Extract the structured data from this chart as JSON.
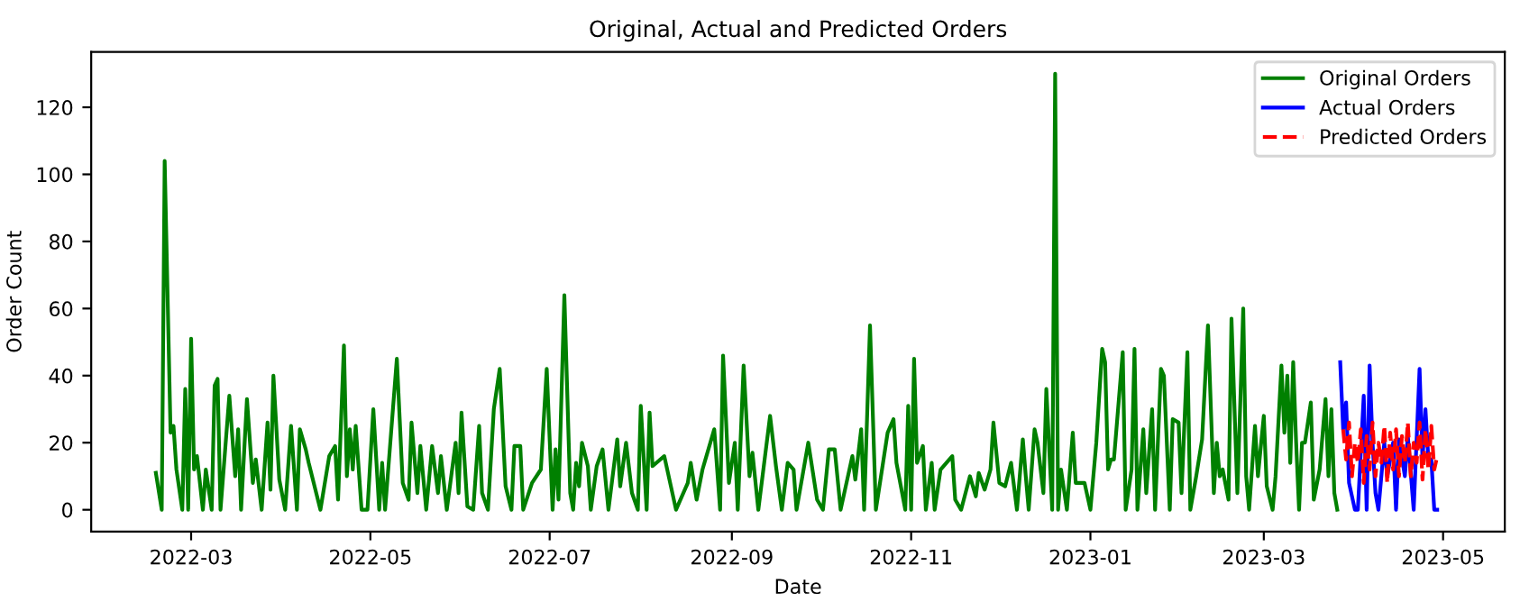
{
  "chart_data": {
    "type": "line",
    "title": "Original, Actual and Predicted Orders",
    "xlabel": "Date",
    "ylabel": "Order Count",
    "xlim": [
      "2022-01-26",
      "2023-05-22"
    ],
    "ylim": [
      -6.5,
      136.5
    ],
    "xticks": [
      {
        "value": "2022-03-01",
        "label": "2022-03"
      },
      {
        "value": "2022-05-01",
        "label": "2022-05"
      },
      {
        "value": "2022-07-01",
        "label": "2022-07"
      },
      {
        "value": "2022-09-01",
        "label": "2022-09"
      },
      {
        "value": "2022-11-01",
        "label": "2022-11"
      },
      {
        "value": "2023-01-01",
        "label": "2023-01"
      },
      {
        "value": "2023-03-01",
        "label": "2023-03"
      },
      {
        "value": "2023-05-01",
        "label": "2023-05"
      }
    ],
    "yticks": [
      0,
      20,
      40,
      60,
      80,
      100,
      120
    ],
    "grid": false,
    "legend": "top right",
    "series": [
      {
        "name": "Original Orders",
        "color": "#008000",
        "line_style": "solid",
        "x": [
          "2022-02-17",
          "2022-02-19",
          "2022-02-20",
          "2022-02-22",
          "2022-02-23",
          "2022-02-24",
          "2022-02-26",
          "2022-02-27",
          "2022-02-28",
          "2022-03-01",
          "2022-03-02",
          "2022-03-03",
          "2022-03-05",
          "2022-03-06",
          "2022-03-08",
          "2022-03-09",
          "2022-03-10",
          "2022-03-11",
          "2022-03-14",
          "2022-03-16",
          "2022-03-17",
          "2022-03-18",
          "2022-03-20",
          "2022-03-22",
          "2022-03-23",
          "2022-03-25",
          "2022-03-27",
          "2022-03-28",
          "2022-03-29",
          "2022-03-31",
          "2022-04-02",
          "2022-04-04",
          "2022-04-06",
          "2022-04-07",
          "2022-04-09",
          "2022-04-10",
          "2022-04-14",
          "2022-04-17",
          "2022-04-19",
          "2022-04-20",
          "2022-04-22",
          "2022-04-23",
          "2022-04-24",
          "2022-04-25",
          "2022-04-26",
          "2022-04-28",
          "2022-04-30",
          "2022-05-02",
          "2022-05-04",
          "2022-05-05",
          "2022-05-06",
          "2022-05-10",
          "2022-05-12",
          "2022-05-14",
          "2022-05-15",
          "2022-05-17",
          "2022-05-18",
          "2022-05-20",
          "2022-05-22",
          "2022-05-24",
          "2022-05-25",
          "2022-05-27",
          "2022-05-30",
          "2022-05-31",
          "2022-06-01",
          "2022-06-03",
          "2022-06-05",
          "2022-06-07",
          "2022-06-08",
          "2022-06-10",
          "2022-06-12",
          "2022-06-14",
          "2022-06-16",
          "2022-06-18",
          "2022-06-19",
          "2022-06-21",
          "2022-06-22",
          "2022-06-25",
          "2022-06-28",
          "2022-06-30",
          "2022-07-02",
          "2022-07-03",
          "2022-07-04",
          "2022-07-06",
          "2022-07-08",
          "2022-07-09",
          "2022-07-10",
          "2022-07-11",
          "2022-07-12",
          "2022-07-14",
          "2022-07-15",
          "2022-07-17",
          "2022-07-19",
          "2022-07-21",
          "2022-07-24",
          "2022-07-25",
          "2022-07-27",
          "2022-07-29",
          "2022-07-31",
          "2022-08-01",
          "2022-08-03",
          "2022-08-04",
          "2022-08-05",
          "2022-08-09",
          "2022-08-13",
          "2022-08-17",
          "2022-08-18",
          "2022-08-20",
          "2022-08-22",
          "2022-08-26",
          "2022-08-28",
          "2022-08-29",
          "2022-08-31",
          "2022-09-02",
          "2022-09-03",
          "2022-09-05",
          "2022-09-07",
          "2022-09-08",
          "2022-09-10",
          "2022-09-14",
          "2022-09-16",
          "2022-09-18",
          "2022-09-20",
          "2022-09-22",
          "2022-09-23",
          "2022-09-27",
          "2022-09-30",
          "2022-10-02",
          "2022-10-04",
          "2022-10-06",
          "2022-10-08",
          "2022-10-12",
          "2022-10-13",
          "2022-10-15",
          "2022-10-16",
          "2022-10-18",
          "2022-10-20",
          "2022-10-24",
          "2022-10-26",
          "2022-10-27",
          "2022-10-30",
          "2022-10-31",
          "2022-11-01",
          "2022-11-02",
          "2022-11-03",
          "2022-11-05",
          "2022-11-06",
          "2022-11-08",
          "2022-11-09",
          "2022-11-11",
          "2022-11-15",
          "2022-11-16",
          "2022-11-18",
          "2022-11-21",
          "2022-11-23",
          "2022-11-24",
          "2022-11-26",
          "2022-11-28",
          "2022-11-29",
          "2022-12-01",
          "2022-12-03",
          "2022-12-05",
          "2022-12-07",
          "2022-12-09",
          "2022-12-10",
          "2022-12-11",
          "2022-12-13",
          "2022-12-14",
          "2022-12-16",
          "2022-12-17",
          "2022-12-19",
          "2022-12-20",
          "2022-12-21",
          "2022-12-22",
          "2022-12-24",
          "2022-12-26",
          "2022-12-27",
          "2022-12-28",
          "2022-12-30",
          "2023-01-01",
          "2023-01-03",
          "2023-01-05",
          "2023-01-06",
          "2023-01-07",
          "2023-01-08",
          "2023-01-09",
          "2023-01-12",
          "2023-01-13",
          "2023-01-15",
          "2023-01-16",
          "2023-01-17",
          "2023-01-19",
          "2023-01-20",
          "2023-01-22",
          "2023-01-23",
          "2023-01-25",
          "2023-01-26",
          "2023-01-28",
          "2023-01-29",
          "2023-01-31",
          "2023-02-01",
          "2023-02-03",
          "2023-02-04",
          "2023-02-06",
          "2023-02-08",
          "2023-02-10",
          "2023-02-12",
          "2023-02-13",
          "2023-02-14",
          "2023-02-15",
          "2023-02-17",
          "2023-02-18",
          "2023-02-20",
          "2023-02-21",
          "2023-02-22",
          "2023-02-23",
          "2023-02-24",
          "2023-02-26",
          "2023-02-27",
          "2023-03-01",
          "2023-03-02",
          "2023-03-04",
          "2023-03-05",
          "2023-03-07",
          "2023-03-08",
          "2023-03-09",
          "2023-03-10",
          "2023-03-11",
          "2023-03-12",
          "2023-03-13",
          "2023-03-14",
          "2023-03-15",
          "2023-03-17",
          "2023-03-18",
          "2023-03-20",
          "2023-03-22",
          "2023-03-23",
          "2023-03-24",
          "2023-03-25",
          "2023-03-26"
        ],
        "values": [
          11,
          0,
          104,
          23,
          25,
          12,
          0,
          36,
          0,
          51,
          12,
          16,
          0,
          12,
          0,
          37,
          39,
          0,
          34,
          10,
          24,
          0,
          33,
          8,
          15,
          0,
          26,
          6,
          40,
          9,
          0,
          25,
          0,
          24,
          18,
          14,
          0,
          16,
          19,
          3,
          49,
          10,
          24,
          12,
          25,
          0,
          0,
          30,
          0,
          14,
          0,
          45,
          8,
          3,
          26,
          5,
          19,
          0,
          19,
          5,
          16,
          0,
          20,
          5,
          29,
          1,
          0,
          25,
          5,
          0,
          30,
          42,
          7,
          0,
          19,
          19,
          0,
          8,
          12,
          42,
          0,
          18,
          3,
          64,
          5,
          0,
          14,
          7,
          20,
          13,
          0,
          13,
          18,
          0,
          21,
          7,
          20,
          5,
          0,
          31,
          0,
          29,
          13,
          16,
          0,
          8,
          14,
          3,
          12,
          24,
          0,
          46,
          8,
          20,
          0,
          43,
          10,
          17,
          0,
          28,
          13,
          0,
          14,
          12,
          0,
          20,
          3,
          0,
          18,
          18,
          0,
          16,
          9,
          24,
          0,
          55,
          0,
          23,
          27,
          14,
          0,
          31,
          0,
          45,
          14,
          19,
          0,
          14,
          0,
          12,
          16,
          3,
          0,
          10,
          4,
          11,
          6,
          12,
          26,
          8,
          7,
          14,
          0,
          21,
          10,
          0,
          24,
          20,
          5,
          36,
          0,
          130,
          0,
          12,
          0,
          23,
          8,
          8,
          8,
          0,
          20,
          48,
          44,
          12,
          15,
          15,
          47,
          0,
          12,
          48,
          0,
          24,
          5,
          30,
          0,
          42,
          40,
          0,
          27,
          26,
          5,
          47,
          0,
          10,
          21,
          55,
          5,
          20,
          10,
          12,
          3,
          57,
          5,
          32,
          60,
          10,
          0,
          25,
          10,
          28,
          7,
          0,
          10,
          43,
          23,
          40,
          14,
          44,
          20,
          0,
          20,
          20,
          32,
          3,
          12,
          33,
          10,
          30,
          5,
          0
        ]
      },
      {
        "name": "Actual Orders",
        "color": "#0000ff",
        "line_style": "solid",
        "x": [
          "2023-03-27",
          "2023-03-28",
          "2023-03-29",
          "2023-03-30",
          "2023-04-01",
          "2023-04-02",
          "2023-04-04",
          "2023-04-05",
          "2023-04-06",
          "2023-04-07",
          "2023-04-08",
          "2023-04-09",
          "2023-04-11",
          "2023-04-12",
          "2023-04-14",
          "2023-04-15",
          "2023-04-16",
          "2023-04-18",
          "2023-04-19",
          "2023-04-21",
          "2023-04-23",
          "2023-04-24",
          "2023-04-25",
          "2023-04-26",
          "2023-04-27",
          "2023-04-28",
          "2023-04-29"
        ],
        "values": [
          44,
          24,
          32,
          8,
          0,
          0,
          34,
          0,
          43,
          20,
          5,
          0,
          20,
          10,
          20,
          0,
          21,
          10,
          22,
          0,
          42,
          15,
          30,
          15,
          15,
          0,
          0
        ]
      },
      {
        "name": "Predicted Orders",
        "color": "#ff0000",
        "line_style": "dashed",
        "x": [
          "2023-03-28",
          "2023-03-29",
          "2023-03-30",
          "2023-03-31",
          "2023-04-01",
          "2023-04-02",
          "2023-04-03",
          "2023-04-04",
          "2023-04-05",
          "2023-04-06",
          "2023-04-07",
          "2023-04-08",
          "2023-04-09",
          "2023-04-10",
          "2023-04-11",
          "2023-04-12",
          "2023-04-13",
          "2023-04-14",
          "2023-04-15",
          "2023-04-16",
          "2023-04-17",
          "2023-04-18",
          "2023-04-19",
          "2023-04-20",
          "2023-04-21",
          "2023-04-22",
          "2023-04-23",
          "2023-04-24",
          "2023-04-25",
          "2023-04-26",
          "2023-04-27",
          "2023-04-28",
          "2023-04-29"
        ],
        "values": [
          24,
          15,
          26,
          10,
          20,
          14,
          24,
          8,
          22,
          12,
          26,
          10,
          20,
          14,
          25,
          8,
          23,
          12,
          24,
          10,
          22,
          14,
          26,
          10,
          20,
          14,
          26,
          9,
          24,
          12,
          25,
          12,
          16
        ]
      }
    ]
  }
}
